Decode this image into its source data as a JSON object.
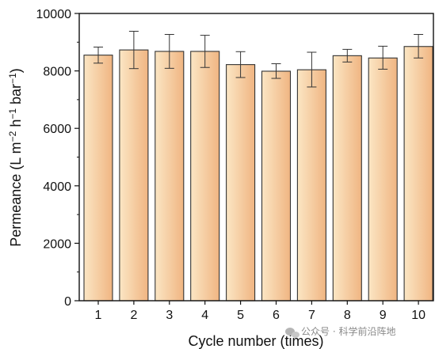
{
  "chart_data": {
    "type": "bar",
    "categories": [
      "1",
      "2",
      "3",
      "4",
      "5",
      "6",
      "7",
      "8",
      "9",
      "10"
    ],
    "values": [
      8550,
      8730,
      8680,
      8680,
      8220,
      7990,
      8040,
      8530,
      8450,
      8850
    ],
    "error_low": [
      8270,
      8080,
      8090,
      8120,
      7770,
      7740,
      7440,
      8310,
      8060,
      8450
    ],
    "error_high": [
      8830,
      9380,
      9270,
      9240,
      8670,
      8250,
      8650,
      8750,
      8860,
      9270
    ],
    "xlabel": "Cycle number (times)",
    "ylabel": {
      "base": "Permeance (L m",
      "exp1": "−2",
      "mid1": " h",
      "exp2": "−1",
      "mid2": " bar",
      "exp3": "−1",
      "end": ")"
    },
    "ylim": [
      0,
      10000
    ],
    "yticks": [
      "0",
      "2000",
      "4000",
      "6000",
      "8000",
      "10000"
    ],
    "grid": false,
    "legend": "none",
    "colors": {
      "bar_light": "#fbe6c4",
      "bar_dark": "#f0b582",
      "bar_edge": "#333333",
      "axis": "#111111"
    }
  },
  "watermark": {
    "icon": "wechat-icon",
    "text": "公众号 · 科学前沿阵地"
  }
}
